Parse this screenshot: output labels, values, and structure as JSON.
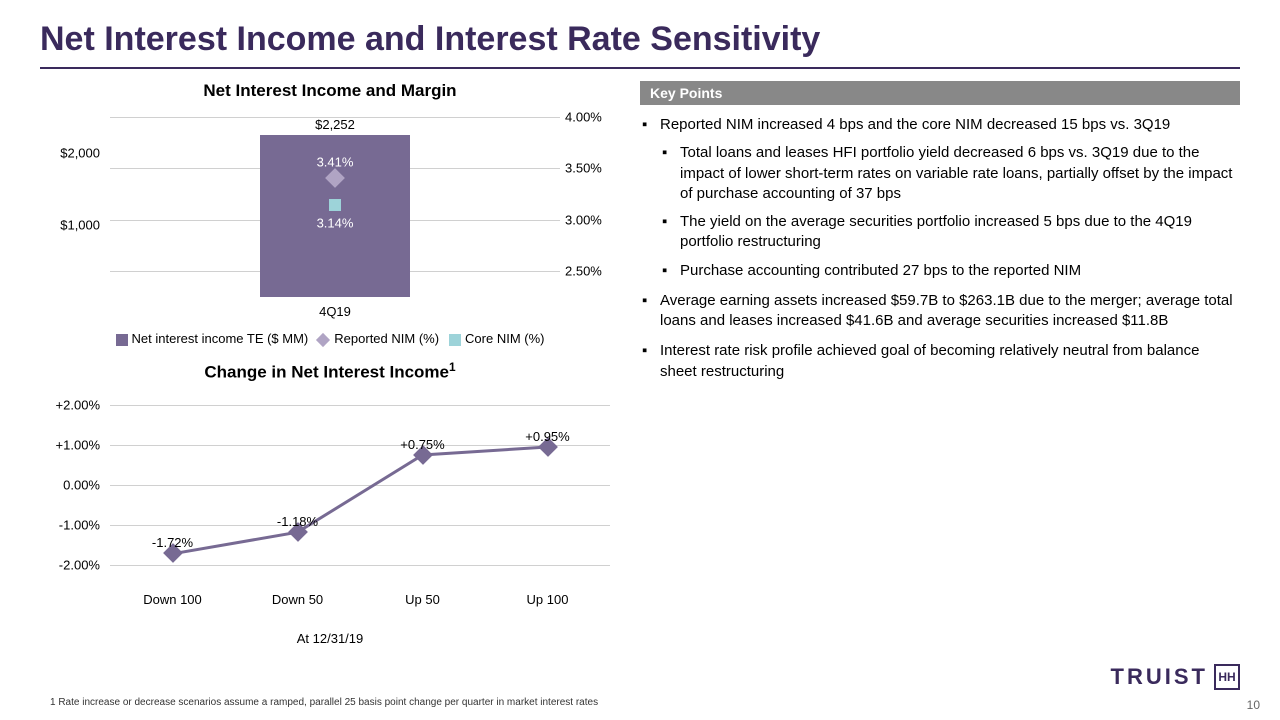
{
  "title": "Net Interest Income and Interest Rate Sensitivity",
  "chart1": {
    "title": "Net Interest Income and Margin",
    "type": "bar+markers",
    "left_axis": {
      "min": 0,
      "max": 2500,
      "ticks": [
        1000,
        2000
      ],
      "tick_labels": [
        "$1,000",
        "$2,000"
      ]
    },
    "right_axis": {
      "min": 2.25,
      "max": 4.0,
      "ticks": [
        2.5,
        3.0,
        3.5,
        4.0
      ],
      "tick_labels": [
        "2.50%",
        "3.00%",
        "3.50%",
        "4.00%"
      ]
    },
    "categories": [
      "4Q19"
    ],
    "bar_value": 2252,
    "bar_label": "$2,252",
    "bar_color": "#776a93",
    "reported_nim": {
      "value": 3.41,
      "label": "3.41%",
      "color": "#b0a4c4"
    },
    "core_nim": {
      "value": 3.14,
      "label": "3.14%",
      "color": "#9dd3d9"
    },
    "grid_color": "#d0d0d0",
    "legend": {
      "l1": "Net interest income TE ($ MM)",
      "l2": "Reported NIM (%)",
      "l3": "Core NIM (%)"
    }
  },
  "chart2": {
    "title_html": "Change in Net Interest Income",
    "title_sup": "1",
    "type": "line",
    "y": {
      "min": -2.5,
      "max": 2.0,
      "ticks": [
        -2.0,
        -1.0,
        0.0,
        1.0,
        2.0
      ],
      "tick_labels": [
        "-2.00%",
        "-1.00%",
        "0.00%",
        "+1.00%",
        "+2.00%"
      ]
    },
    "categories": [
      "Down 100",
      "Down 50",
      "Up 50",
      "Up 100"
    ],
    "values": [
      -1.72,
      -1.18,
      0.75,
      0.95
    ],
    "value_labels": [
      "-1.72%",
      "-1.18%",
      "+0.75%",
      "+0.95%"
    ],
    "line_color": "#776a93",
    "marker_color": "#776a93",
    "grid_color": "#d0d0d0",
    "legend": "At 12/31/19"
  },
  "key_points": {
    "header": "Key Points",
    "items": [
      {
        "text": "Reported NIM increased 4 bps and the core NIM decreased 15 bps vs. 3Q19",
        "sub": [
          "Total loans and leases HFI portfolio yield decreased 6 bps vs. 3Q19 due to the impact of lower short-term rates on variable rate loans, partially offset by the impact of purchase accounting of 37 bps",
          "The yield on the average securities portfolio increased 5 bps due to the 4Q19 portfolio restructuring",
          "Purchase accounting contributed 27 bps to the reported NIM"
        ]
      },
      {
        "text": "Average earning assets increased $59.7B to $263.1B due to the merger; average total loans and leases increased $41.6B and average securities increased $11.8B"
      },
      {
        "text": "Interest rate risk profile achieved goal of becoming relatively neutral from balance sheet restructuring"
      }
    ]
  },
  "footnote": "1 Rate increase or decrease scenarios assume a ramped, parallel 25 basis point change per quarter in market interest rates",
  "page_num": "10",
  "brand": "TRUIST",
  "brand_icon": "HH",
  "colors": {
    "title": "#3a2a5c",
    "header_bg": "#888888"
  }
}
